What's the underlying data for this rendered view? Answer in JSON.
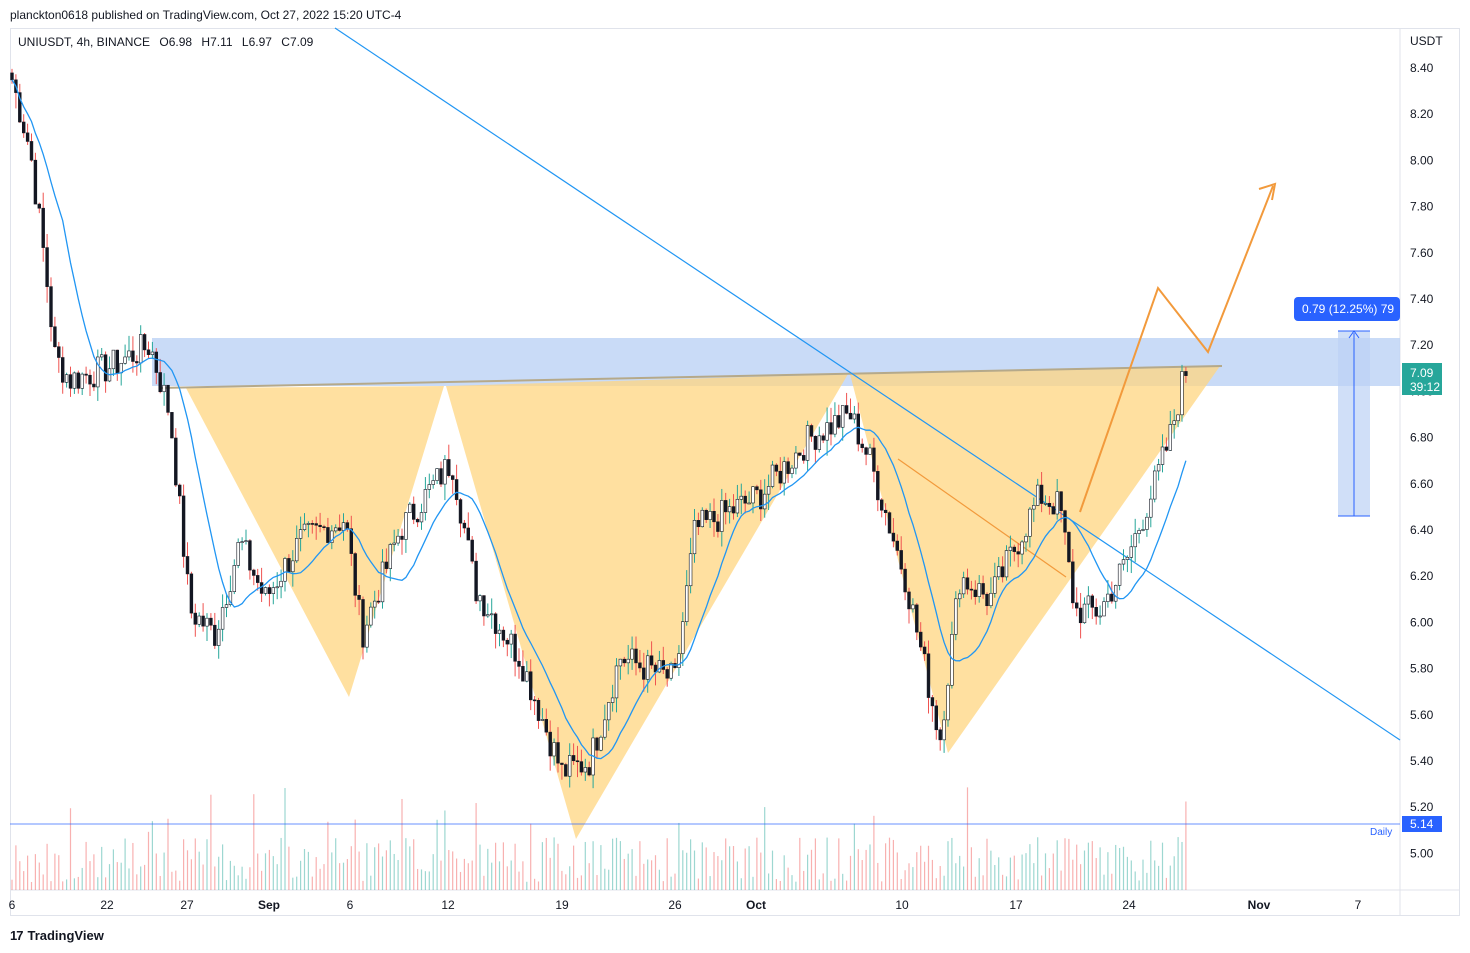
{
  "header": {
    "published_line": "planckton0618 published on TradingView.com, Oct 27, 2022 15:20 UTC-4"
  },
  "legend": {
    "symbol_info": "UNIUSDT, 4h, BINANCE",
    "open": "O6.98",
    "high": "H7.11",
    "low": "L6.97",
    "close": "C7.09"
  },
  "price_axis": {
    "currency": "USDT",
    "ticks": [
      "8.40",
      "8.20",
      "8.00",
      "7.80",
      "7.60",
      "7.40",
      "7.20",
      "7.00",
      "6.80",
      "6.60",
      "6.40",
      "6.20",
      "6.00",
      "5.80",
      "5.60",
      "5.40",
      "5.20",
      "5.00"
    ],
    "last_price": "7.09",
    "countdown": "39:12",
    "daily_level": "5.14",
    "daily_label": "Daily"
  },
  "measure_tool": {
    "label": "0.79 (12.25%) 79"
  },
  "time_axis": {
    "ticks": [
      "6",
      "22",
      "27",
      "Sep",
      "6",
      "12",
      "19",
      "26",
      "Oct",
      "10",
      "17",
      "24",
      "Nov",
      "7"
    ]
  },
  "brand": {
    "name": "TradingView",
    "mark": "17"
  },
  "colors": {
    "up_candle": "#ffffff",
    "down_candle": "#131722",
    "ma_line": "#2196f3",
    "trendline": "#2196f3",
    "pattern_fill": "#ffd580",
    "resistance_zone": "#bcd2f5",
    "projection": "#f29a3c",
    "vol_up": "#26a69a",
    "vol_down": "#ef5350",
    "price_badge": "#26a69a",
    "daily_badge": "#2962ff"
  },
  "chart_data": {
    "type": "candlestick",
    "timeframe": "4h",
    "ylim": [
      4.85,
      8.5
    ],
    "price_path": [
      [
        "Aug 16",
        8.35
      ],
      [
        "Aug 17",
        8.05
      ],
      [
        "Aug 18",
        7.55
      ],
      [
        "Aug 19",
        7.15
      ],
      [
        "Aug 20",
        7.05
      ],
      [
        "Aug 22",
        7.1
      ],
      [
        "Aug 24",
        7.2
      ],
      [
        "Aug 26",
        6.9
      ],
      [
        "Aug 28",
        6.05
      ],
      [
        "Aug 29",
        5.95
      ],
      [
        "Aug 31",
        6.35
      ],
      [
        "Sep 2",
        6.1
      ],
      [
        "Sep 4",
        6.35
      ],
      [
        "Sep 6",
        6.45
      ],
      [
        "Sep 7",
        5.95
      ],
      [
        "Sep 9",
        6.4
      ],
      [
        "Sep 12",
        6.7
      ],
      [
        "Sep 14",
        6.15
      ],
      [
        "Sep 17",
        5.85
      ],
      [
        "Sep 19",
        5.35
      ],
      [
        "Sep 21",
        5.4
      ],
      [
        "Sep 23",
        5.85
      ],
      [
        "Sep 26",
        5.75
      ],
      [
        "Sep 28",
        6.4
      ],
      [
        "Oct 2",
        6.55
      ],
      [
        "Oct 5",
        6.8
      ],
      [
        "Oct 7",
        6.9
      ],
      [
        "Oct 9",
        6.7
      ],
      [
        "Oct 11",
        6.2
      ],
      [
        "Oct 13",
        5.5
      ],
      [
        "Oct 14",
        6.2
      ],
      [
        "Oct 16",
        6.1
      ],
      [
        "Oct 18",
        6.55
      ],
      [
        "Oct 20",
        6.5
      ],
      [
        "Oct 21",
        6.05
      ],
      [
        "Oct 23",
        6.05
      ],
      [
        "Oct 24",
        6.25
      ],
      [
        "Oct 25",
        6.6
      ],
      [
        "Oct 26",
        6.8
      ],
      [
        "Oct 27",
        7.09
      ]
    ],
    "resistance_zone": [
      7.02,
      7.23
    ],
    "daily_level": 5.14,
    "measured_move": {
      "change": 0.79,
      "percent": 12.25
    }
  }
}
